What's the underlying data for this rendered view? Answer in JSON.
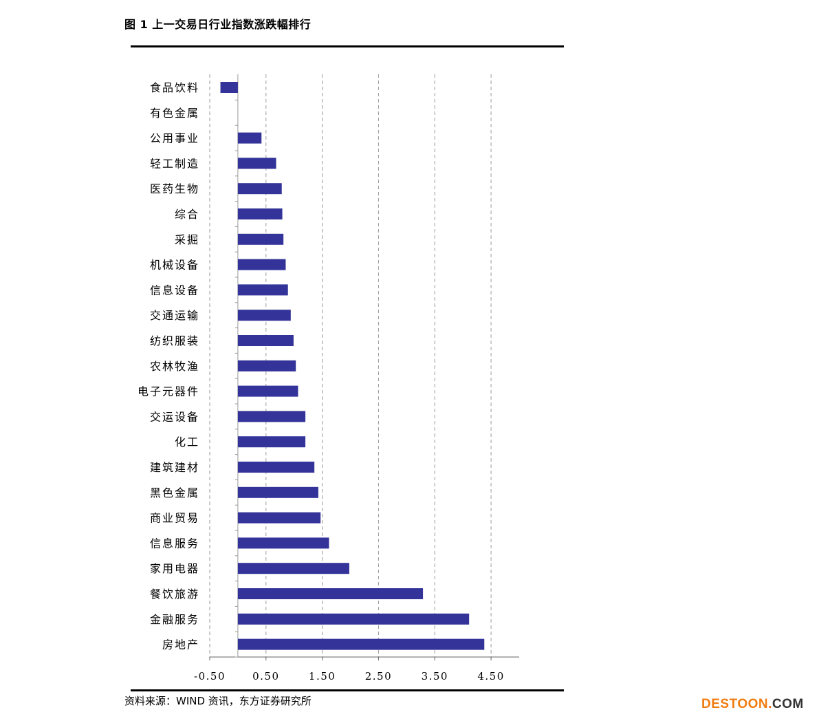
{
  "title": "图 1  上一交易日行业指数涨跌幅排行",
  "source": "资料来源：WIND 资讯，东方证券研究所",
  "watermark": {
    "part1": "DESTOON",
    "part2": ".",
    "part3": "COM"
  },
  "colors": {
    "bar": "#333399",
    "grid": "#999999",
    "axis": "#666666",
    "rule": "#000000"
  },
  "chart_data": {
    "type": "bar",
    "orientation": "horizontal",
    "title": "",
    "xlabel": "",
    "ylabel": "",
    "xlim": [
      -0.5,
      5.0
    ],
    "xticks": [
      -0.5,
      0.5,
      1.5,
      2.5,
      3.5,
      4.5
    ],
    "xtick_labels": [
      "-0.50",
      "0.50",
      "1.50",
      "2.50",
      "3.50",
      "4.50"
    ],
    "grid": "vertical dashed",
    "categories": [
      "食品饮料",
      "有色金属",
      "公用事业",
      "轻工制造",
      "医药生物",
      "综合",
      "采掘",
      "机械设备",
      "信息设备",
      "交通运输",
      "纺织服装",
      "农林牧渔",
      "电子元器件",
      "交运设备",
      "化工",
      "建筑建材",
      "黑色金属",
      "商业贸易",
      "信息服务",
      "家用电器",
      "餐饮旅游",
      "金融服务",
      "房地产"
    ],
    "values": [
      -0.31,
      0.0,
      0.42,
      0.68,
      0.78,
      0.79,
      0.81,
      0.85,
      0.89,
      0.94,
      0.99,
      1.03,
      1.07,
      1.2,
      1.2,
      1.36,
      1.43,
      1.47,
      1.62,
      1.98,
      3.29,
      4.11,
      4.38
    ]
  }
}
